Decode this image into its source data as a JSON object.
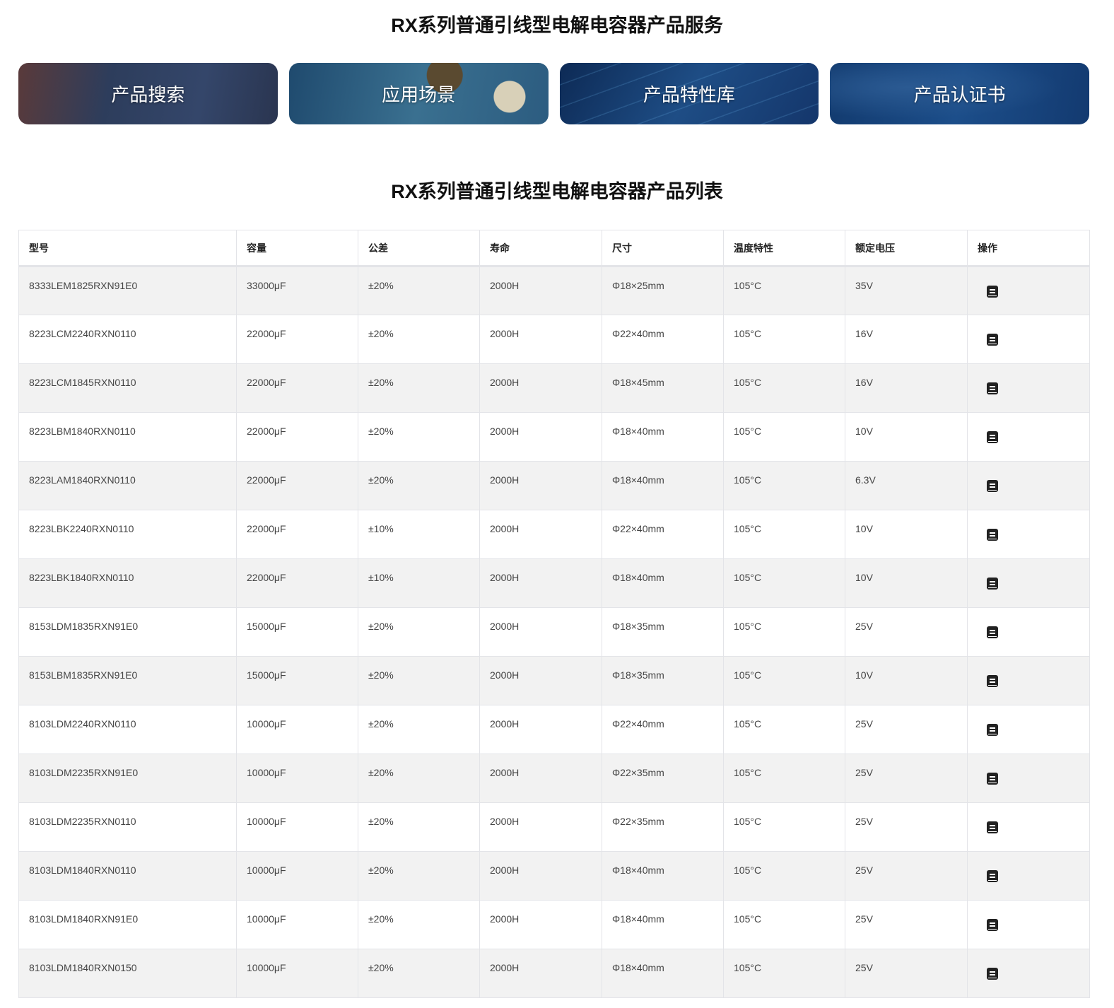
{
  "services_title": "RX系列普通引线型电解电容器产品服务",
  "banners": [
    {
      "label": "产品搜索"
    },
    {
      "label": "应用场景"
    },
    {
      "label": "产品特性库"
    },
    {
      "label": "产品认证书"
    }
  ],
  "list_title": "RX系列普通引线型电解电容器产品列表",
  "table": {
    "headers": [
      "型号",
      "容量",
      "公差",
      "寿命",
      "尺寸",
      "温度特性",
      "额定电压",
      "操作"
    ],
    "action_icon": "datasheet-book-icon",
    "rows": [
      [
        "8333LEM1825RXN91E0",
        "33000μF",
        "±20%",
        "2000H",
        "Φ18×25mm",
        "105°C",
        "35V"
      ],
      [
        "8223LCM2240RXN0110",
        "22000μF",
        "±20%",
        "2000H",
        "Φ22×40mm",
        "105°C",
        "16V"
      ],
      [
        "8223LCM1845RXN0110",
        "22000μF",
        "±20%",
        "2000H",
        "Φ18×45mm",
        "105°C",
        "16V"
      ],
      [
        "8223LBM1840RXN0110",
        "22000μF",
        "±20%",
        "2000H",
        "Φ18×40mm",
        "105°C",
        "10V"
      ],
      [
        "8223LAM1840RXN0110",
        "22000μF",
        "±20%",
        "2000H",
        "Φ18×40mm",
        "105°C",
        "6.3V"
      ],
      [
        "8223LBK2240RXN0110",
        "22000μF",
        "±10%",
        "2000H",
        "Φ22×40mm",
        "105°C",
        "10V"
      ],
      [
        "8223LBK1840RXN0110",
        "22000μF",
        "±10%",
        "2000H",
        "Φ18×40mm",
        "105°C",
        "10V"
      ],
      [
        "8153LDM1835RXN91E0",
        "15000μF",
        "±20%",
        "2000H",
        "Φ18×35mm",
        "105°C",
        "25V"
      ],
      [
        "8153LBM1835RXN91E0",
        "15000μF",
        "±20%",
        "2000H",
        "Φ18×35mm",
        "105°C",
        "10V"
      ],
      [
        "8103LDM2240RXN0110",
        "10000μF",
        "±20%",
        "2000H",
        "Φ22×40mm",
        "105°C",
        "25V"
      ],
      [
        "8103LDM2235RXN91E0",
        "10000μF",
        "±20%",
        "2000H",
        "Φ22×35mm",
        "105°C",
        "25V"
      ],
      [
        "8103LDM2235RXN0110",
        "10000μF",
        "±20%",
        "2000H",
        "Φ22×35mm",
        "105°C",
        "25V"
      ],
      [
        "8103LDM1840RXN0110",
        "10000μF",
        "±20%",
        "2000H",
        "Φ18×40mm",
        "105°C",
        "25V"
      ],
      [
        "8103LDM1840RXN91E0",
        "10000μF",
        "±20%",
        "2000H",
        "Φ18×40mm",
        "105°C",
        "25V"
      ],
      [
        "8103LDM1840RXN0150",
        "10000μF",
        "±20%",
        "2000H",
        "Φ18×40mm",
        "105°C",
        "25V"
      ]
    ]
  }
}
